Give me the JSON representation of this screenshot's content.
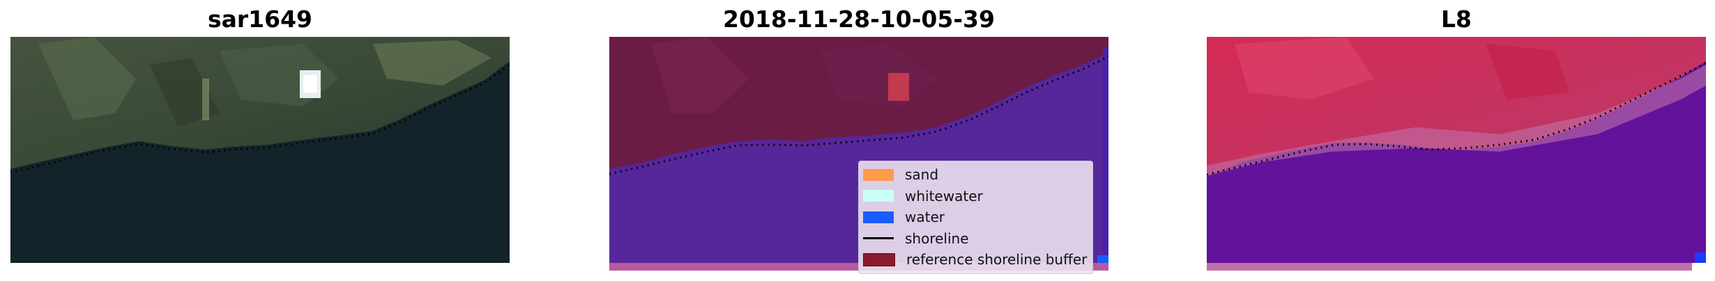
{
  "panels": [
    {
      "title": "sar1649"
    },
    {
      "title": "2018-11-28-10-05-39"
    },
    {
      "title": "L8"
    }
  ],
  "legend": {
    "items": [
      {
        "label": "sand",
        "color": "#ff9a4d",
        "kind": "patch"
      },
      {
        "label": "whitewater",
        "color": "#c8fff8",
        "kind": "patch"
      },
      {
        "label": "water",
        "color": "#1a5cff",
        "kind": "patch"
      },
      {
        "label": "shoreline",
        "color": "#000000",
        "kind": "line"
      },
      {
        "label": "reference shoreline buffer",
        "color": "#8b1a2e",
        "kind": "patch"
      }
    ]
  },
  "colors": {
    "rgb_water": "#132428",
    "rgb_land": "#3b4a3a",
    "classified_land": "#6a1c45",
    "classified_water": "#55279a",
    "classified_strip": "#b85a9e",
    "mndwi_land": "#c8224e",
    "mndwi_water": "#62109a",
    "shoreline_dots": "#000000"
  }
}
